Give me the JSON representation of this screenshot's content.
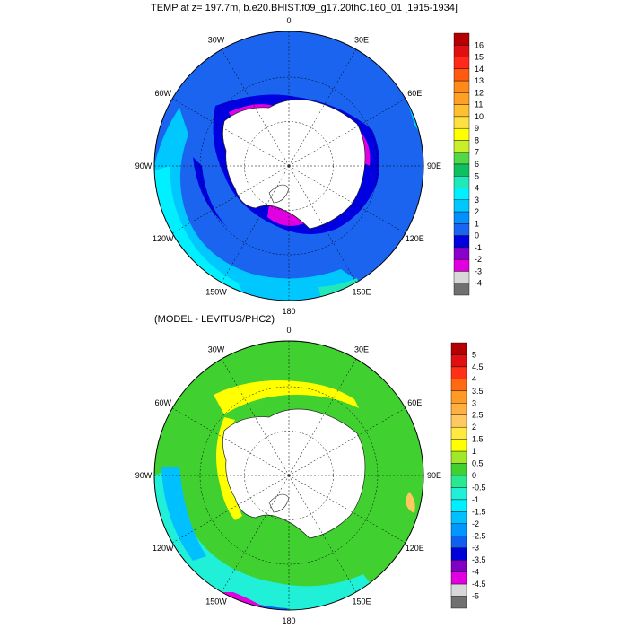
{
  "titles": {
    "top": "TEMP at z= 197.7m, b.e20.BHIST.f09_g17.20thC.160_01 [1915-1934]",
    "bottom": "(MODEL - LEVITUS/PHC2)"
  },
  "longitude_labels": [
    "0",
    "30E",
    "60E",
    "90E",
    "120E",
    "150E",
    "180",
    "150W",
    "120W",
    "90W",
    "60W",
    "30W"
  ],
  "colorbars": {
    "top": {
      "labels": [
        "16",
        "15",
        "14",
        "13",
        "12",
        "11",
        "10",
        "9",
        "8",
        "7",
        "6",
        "5",
        "4",
        "3",
        "2",
        "1",
        "0",
        "-1",
        "-2",
        "-3",
        "-4"
      ],
      "colors": [
        "#b40000",
        "#e01010",
        "#ff2a1a",
        "#ff5a10",
        "#ff8a1a",
        "#ffa024",
        "#ffc030",
        "#ffe040",
        "#ffff00",
        "#c8f028",
        "#50d848",
        "#10c060",
        "#20e8b8",
        "#00f0ff",
        "#00c8ff",
        "#0090ff",
        "#1a64f0",
        "#0000e0",
        "#8a00cc",
        "#e000e0",
        "#d8d8d8",
        "#707070"
      ]
    },
    "bottom": {
      "labels": [
        "5",
        "4.5",
        "4",
        "3.5",
        "3",
        "2.5",
        "2",
        "1.5",
        "1",
        "0.5",
        "0",
        "-0.5",
        "-1",
        "-1.5",
        "-2",
        "-2.5",
        "-3",
        "-3.5",
        "-4",
        "-4.5",
        "-5"
      ],
      "colors": [
        "#b40000",
        "#e01010",
        "#ff3018",
        "#ff6a10",
        "#ff9a24",
        "#ffb040",
        "#ffc860",
        "#ffe840",
        "#ffff00",
        "#a0e828",
        "#40d030",
        "#28e890",
        "#20f0d8",
        "#00f0ff",
        "#00c0ff",
        "#0098ff",
        "#1060f0",
        "#0000d8",
        "#8000c8",
        "#e000e0",
        "#d8d8d8",
        "#707070"
      ]
    }
  },
  "maps": {
    "top": {
      "field": "TEMP",
      "land_color": "#ffffff",
      "ocean_base": "#1a64f0",
      "near_ice": "#0000e0",
      "shelf": "#e000e0",
      "warm_north": "#00c8ff"
    },
    "bottom": {
      "field": "MODEL - LEVITUS/PHC2",
      "land_color": "#ffffff",
      "ocean_base": "#40d030",
      "near_ice": "#ffff00",
      "cool_band": "#00c8ff",
      "cold_spot": "#e000e0"
    }
  }
}
